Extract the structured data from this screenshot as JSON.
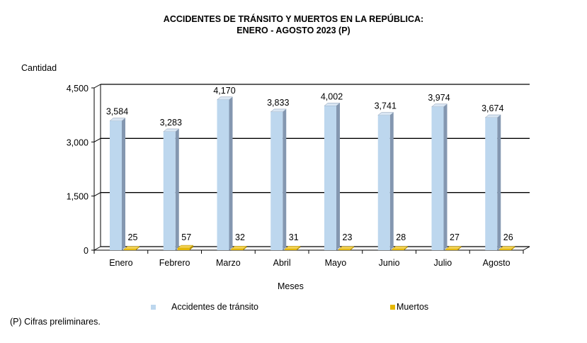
{
  "chart_data": {
    "type": "bar",
    "title": "ACCIDENTES  DE TRÁNSITO Y MUERTOS EN LA REPÚBLICA:",
    "subtitle": "ENERO  - AGOSTO 2023 (P)",
    "xlabel": "Meses",
    "ylabel": "Cantidad",
    "ylim": [
      0,
      4500
    ],
    "yticks": [
      0,
      1500,
      3000,
      4500
    ],
    "ytick_labels": [
      "0",
      "1,500",
      "3,000",
      "4,500"
    ],
    "grid": true,
    "legend_position": "bottom",
    "categories": [
      "Enero",
      "Febrero",
      "Marzo",
      "Abril",
      "Mayo",
      "Junio",
      "Julio",
      "Agosto"
    ],
    "series": [
      {
        "name": "Accidentes de tránsito",
        "color": "#bdd7ee",
        "values": [
          3584,
          3283,
          4170,
          3833,
          4002,
          3741,
          3974,
          3674
        ],
        "labels": [
          "3,584",
          "3,283",
          "4,170",
          "3,833",
          "4,002",
          "3,741",
          "3,974",
          "3,674"
        ]
      },
      {
        "name": "Muertos",
        "color": "#e6b800",
        "values": [
          25,
          57,
          32,
          31,
          23,
          28,
          27,
          26
        ],
        "labels": [
          "25",
          "57",
          "32",
          "31",
          "23",
          "28",
          "27",
          "26"
        ]
      }
    ]
  },
  "footnote": "(P) Cifras  preliminares."
}
